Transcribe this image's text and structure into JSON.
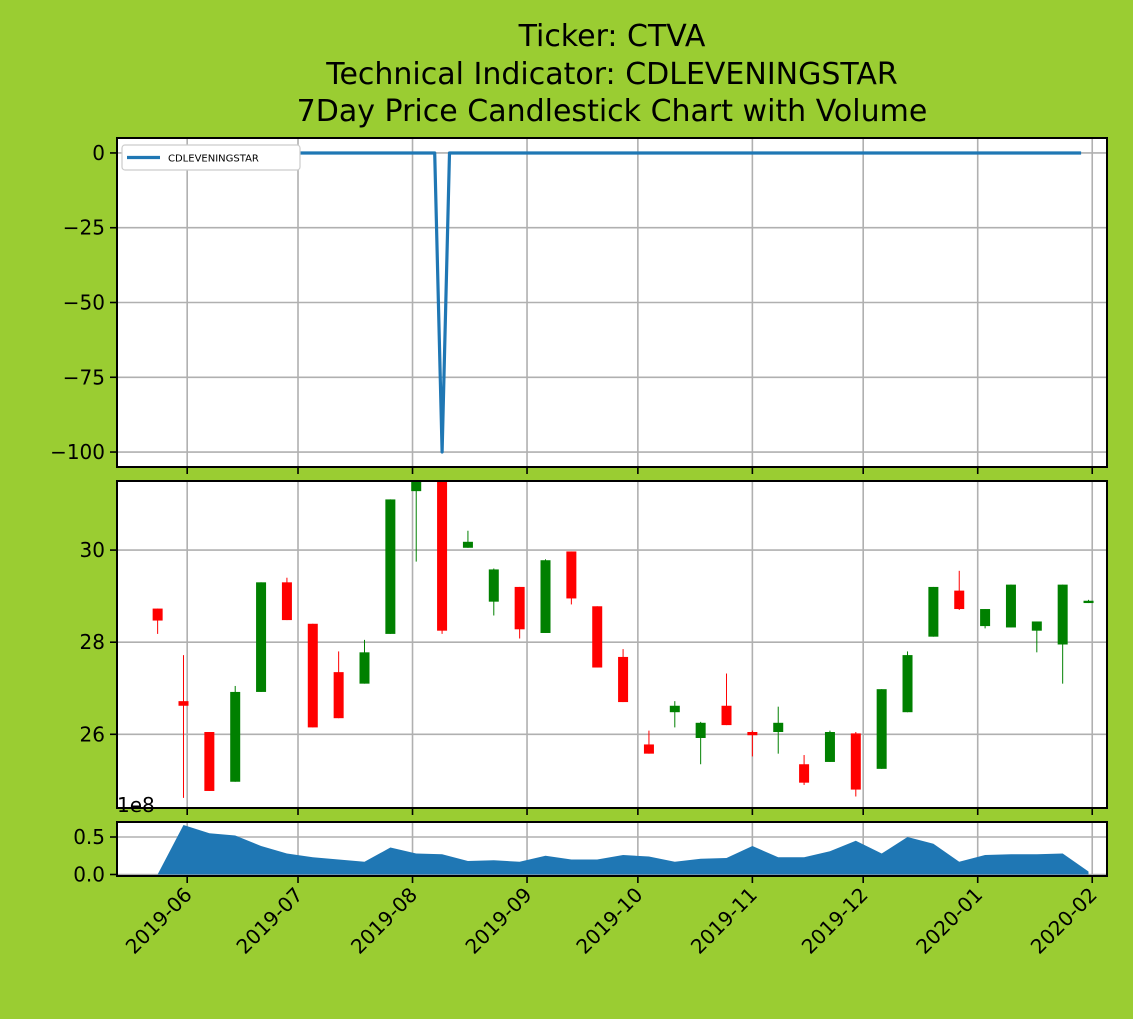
{
  "title_lines": [
    "Ticker: CTVA",
    "Technical Indicator: CDLEVENINGSTAR",
    "7Day Price Candlestick Chart with Volume"
  ],
  "colors": {
    "background": "#9ACD32",
    "panel": "#ffffff",
    "indicator_line": "#1f77b4",
    "volume_fill": "#1f77b4",
    "up_candle": "#008000",
    "down_candle": "#ff0000",
    "grid": "#b0b0b0"
  },
  "chart_data": [
    {
      "type": "line",
      "panel": "indicator",
      "legend": {
        "label": "CDLEVENINGSTAR",
        "placement": "upper-left"
      },
      "xlim": [
        "2019-05-13",
        "2020-02-05"
      ],
      "ylim": [
        -105,
        5
      ],
      "yticks": [
        0,
        -25,
        -50,
        -75,
        -100
      ],
      "ytick_labels": [
        "0",
        "−25",
        "−50",
        "−75",
        "−100"
      ],
      "grid": true,
      "series": [
        {
          "name": "CDLEVENINGSTAR",
          "x": [
            "2019-05-24",
            "2019-08-07",
            "2019-08-09",
            "2019-08-11",
            "2020-01-29"
          ],
          "values": [
            0,
            0,
            -100,
            0,
            0
          ]
        }
      ]
    },
    {
      "type": "candlestick",
      "panel": "price",
      "xlim": [
        "2019-05-13",
        "2020-02-05"
      ],
      "ylim": [
        24.4,
        31.5
      ],
      "yticks": [
        26,
        28,
        30
      ],
      "ytick_labels": [
        "26",
        "28",
        "30"
      ],
      "grid": true,
      "candles": [
        {
          "date": "2019-05-24",
          "open": 28.73,
          "high": 28.73,
          "low": 28.18,
          "close": 28.47
        },
        {
          "date": "2019-05-31",
          "open": 26.72,
          "high": 27.72,
          "low": 24.62,
          "close": 26.62
        },
        {
          "date": "2019-06-07",
          "open": 26.05,
          "high": 26.05,
          "low": 24.77,
          "close": 24.77
        },
        {
          "date": "2019-06-14",
          "open": 24.97,
          "high": 27.05,
          "low": 24.97,
          "close": 26.92
        },
        {
          "date": "2019-06-21",
          "open": 26.92,
          "high": 29.3,
          "low": 26.92,
          "close": 29.3
        },
        {
          "date": "2019-06-28",
          "open": 29.3,
          "high": 29.4,
          "low": 28.48,
          "close": 28.48
        },
        {
          "date": "2019-07-05",
          "open": 28.4,
          "high": 28.4,
          "low": 26.15,
          "close": 26.15
        },
        {
          "date": "2019-07-12",
          "open": 27.35,
          "high": 27.8,
          "low": 26.35,
          "close": 26.35
        },
        {
          "date": "2019-07-19",
          "open": 27.1,
          "high": 28.05,
          "low": 27.1,
          "close": 27.78
        },
        {
          "date": "2019-07-26",
          "open": 28.18,
          "high": 31.1,
          "low": 28.18,
          "close": 31.1
        },
        {
          "date": "2019-08-02",
          "open": 31.28,
          "high": 31.5,
          "low": 29.75,
          "close": 31.5
        },
        {
          "date": "2019-08-09",
          "open": 31.5,
          "high": 31.5,
          "low": 28.18,
          "close": 28.25
        },
        {
          "date": "2019-08-16",
          "open": 30.05,
          "high": 30.42,
          "low": 30.05,
          "close": 30.18
        },
        {
          "date": "2019-08-23",
          "open": 28.88,
          "high": 29.6,
          "low": 28.58,
          "close": 29.58
        },
        {
          "date": "2019-08-30",
          "open": 29.2,
          "high": 29.2,
          "low": 28.08,
          "close": 28.28
        },
        {
          "date": "2019-09-06",
          "open": 28.2,
          "high": 29.8,
          "low": 28.2,
          "close": 29.78
        },
        {
          "date": "2019-09-13",
          "open": 29.97,
          "high": 29.97,
          "low": 28.82,
          "close": 28.95
        },
        {
          "date": "2019-09-20",
          "open": 28.78,
          "high": 28.78,
          "low": 27.45,
          "close": 27.45
        },
        {
          "date": "2019-09-27",
          "open": 27.68,
          "high": 27.85,
          "low": 26.7,
          "close": 26.7
        },
        {
          "date": "2019-10-04",
          "open": 25.78,
          "high": 26.08,
          "low": 25.58,
          "close": 25.58
        },
        {
          "date": "2019-10-11",
          "open": 26.48,
          "high": 26.72,
          "low": 26.15,
          "close": 26.62
        },
        {
          "date": "2019-10-18",
          "open": 25.92,
          "high": 26.27,
          "low": 25.35,
          "close": 26.25
        },
        {
          "date": "2019-10-25",
          "open": 26.62,
          "high": 27.32,
          "low": 26.2,
          "close": 26.2
        },
        {
          "date": "2019-11-01",
          "open": 26.05,
          "high": 26.08,
          "low": 25.52,
          "close": 25.98
        },
        {
          "date": "2019-11-08",
          "open": 26.05,
          "high": 26.6,
          "low": 25.58,
          "close": 26.25
        },
        {
          "date": "2019-11-15",
          "open": 25.35,
          "high": 25.55,
          "low": 24.9,
          "close": 24.95
        },
        {
          "date": "2019-11-22",
          "open": 25.4,
          "high": 26.08,
          "low": 25.4,
          "close": 26.05
        },
        {
          "date": "2019-11-29",
          "open": 26.02,
          "high": 26.05,
          "low": 24.65,
          "close": 24.8
        },
        {
          "date": "2019-12-06",
          "open": 25.25,
          "high": 26.98,
          "low": 25.25,
          "close": 26.98
        },
        {
          "date": "2019-12-13",
          "open": 26.48,
          "high": 27.8,
          "low": 26.48,
          "close": 27.72
        },
        {
          "date": "2019-12-20",
          "open": 28.12,
          "high": 29.2,
          "low": 28.12,
          "close": 29.2
        },
        {
          "date": "2019-12-27",
          "open": 29.12,
          "high": 29.55,
          "low": 28.7,
          "close": 28.72
        },
        {
          "date": "2020-01-03",
          "open": 28.35,
          "high": 28.72,
          "low": 28.3,
          "close": 28.72
        },
        {
          "date": "2020-01-10",
          "open": 28.32,
          "high": 29.25,
          "low": 28.32,
          "close": 29.25
        },
        {
          "date": "2020-01-17",
          "open": 28.25,
          "high": 28.45,
          "low": 27.78,
          "close": 28.45
        },
        {
          "date": "2020-01-24",
          "open": 27.95,
          "high": 29.25,
          "low": 27.1,
          "close": 29.25
        },
        {
          "date": "2020-01-31",
          "open": 28.85,
          "high": 28.92,
          "low": 28.85,
          "close": 28.9
        }
      ]
    },
    {
      "type": "area",
      "panel": "volume",
      "xlim": [
        "2019-05-13",
        "2020-02-05"
      ],
      "ylim": [
        -0.02,
        0.7
      ],
      "yticks": [
        0.0,
        0.5
      ],
      "ytick_labels": [
        "0.0",
        "0.5"
      ],
      "offset_label": "1e8",
      "grid": true,
      "xtick_labels": [
        "2019-06",
        "2019-07",
        "2019-08",
        "2019-09",
        "2019-10",
        "2019-11",
        "2019-12",
        "2020-01",
        "2020-02"
      ],
      "xticks": [
        "2019-06-01",
        "2019-07-01",
        "2019-08-01",
        "2019-09-01",
        "2019-10-01",
        "2019-11-01",
        "2019-12-01",
        "2020-01-01",
        "2020-02-01"
      ],
      "x": [
        "2019-05-24",
        "2019-05-31",
        "2019-06-07",
        "2019-06-14",
        "2019-06-21",
        "2019-06-28",
        "2019-07-05",
        "2019-07-12",
        "2019-07-19",
        "2019-07-26",
        "2019-08-02",
        "2019-08-09",
        "2019-08-16",
        "2019-08-23",
        "2019-08-30",
        "2019-09-06",
        "2019-09-13",
        "2019-09-20",
        "2019-09-27",
        "2019-10-04",
        "2019-10-11",
        "2019-10-18",
        "2019-10-25",
        "2019-11-01",
        "2019-11-08",
        "2019-11-15",
        "2019-11-22",
        "2019-11-29",
        "2019-12-06",
        "2019-12-13",
        "2019-12-20",
        "2019-12-27",
        "2020-01-03",
        "2020-01-10",
        "2020-01-17",
        "2020-01-24",
        "2020-01-31"
      ],
      "values": [
        0.0,
        0.66,
        0.55,
        0.52,
        0.38,
        0.28,
        0.23,
        0.2,
        0.17,
        0.36,
        0.28,
        0.27,
        0.18,
        0.19,
        0.17,
        0.25,
        0.2,
        0.2,
        0.26,
        0.24,
        0.17,
        0.21,
        0.22,
        0.38,
        0.23,
        0.23,
        0.31,
        0.45,
        0.28,
        0.5,
        0.41,
        0.17,
        0.26,
        0.27,
        0.27,
        0.28,
        0.04
      ]
    }
  ]
}
